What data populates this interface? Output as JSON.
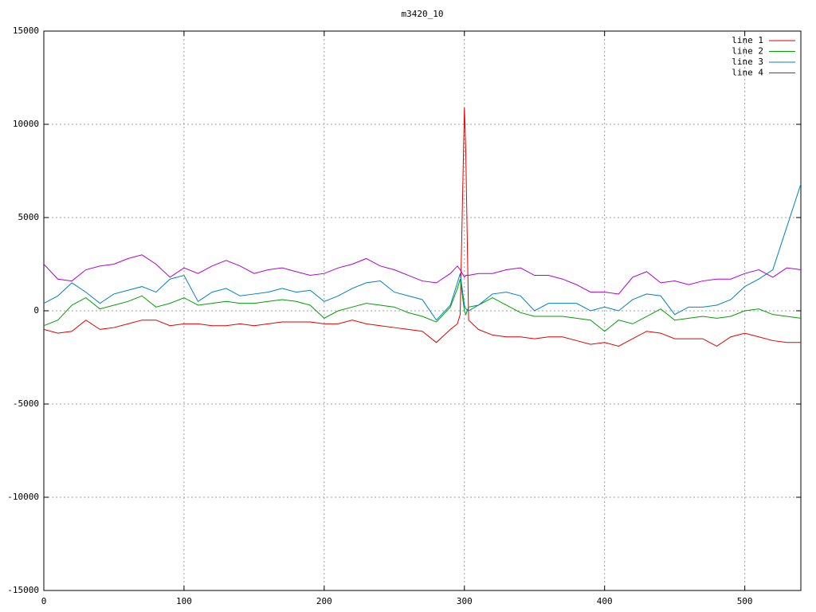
{
  "chart_data": {
    "type": "line",
    "title": "m3420_10",
    "x": [
      0,
      10,
      20,
      30,
      40,
      50,
      60,
      70,
      80,
      90,
      100,
      110,
      120,
      130,
      140,
      150,
      160,
      170,
      180,
      190,
      200,
      210,
      220,
      230,
      240,
      250,
      260,
      270,
      280,
      290,
      295,
      297,
      300,
      301,
      303,
      310,
      320,
      330,
      340,
      350,
      360,
      370,
      380,
      390,
      400,
      410,
      420,
      430,
      440,
      450,
      460,
      470,
      480,
      490,
      500,
      510,
      520,
      530,
      540
    ],
    "series": [
      {
        "name": "line 1",
        "color": "#e00000",
        "values": [
          -1000,
          -1200,
          -1100,
          -500,
          -1000,
          -900,
          -700,
          -500,
          -500,
          -800,
          -700,
          -700,
          -800,
          -800,
          -700,
          -800,
          -700,
          -600,
          -600,
          -600,
          -700,
          -700,
          -500,
          -700,
          -800,
          -900,
          -1000,
          -1100,
          -1700,
          -1000,
          -700,
          -200,
          10900,
          8500,
          -500,
          -1000,
          -1300,
          -1400,
          -1400,
          -1500,
          -1400,
          -1400,
          -1600,
          -1800,
          -1700,
          -1900,
          -1500,
          -1100,
          -1200,
          -1500,
          -1500,
          -1500,
          -1900,
          -1400,
          -1200,
          -1400,
          -1600,
          -1700,
          -1700
        ]
      },
      {
        "name": "line 2",
        "color": "#00a000",
        "values": [
          -800,
          -500,
          300,
          700,
          100,
          300,
          500,
          800,
          200,
          400,
          700,
          300,
          400,
          500,
          400,
          400,
          500,
          600,
          500,
          300,
          -400,
          0,
          200,
          400,
          300,
          200,
          -100,
          -300,
          -600,
          200,
          1200,
          1700,
          0,
          -200,
          200,
          300,
          700,
          300,
          -100,
          -300,
          -300,
          -300,
          -400,
          -500,
          -1100,
          -500,
          -700,
          -300,
          100,
          -500,
          -400,
          -300,
          -400,
          -300,
          0,
          100,
          -200,
          -300,
          -400
        ]
      },
      {
        "name": "line 3",
        "color": "#0080c0",
        "values": [
          400,
          800,
          1500,
          1000,
          400,
          900,
          1100,
          1300,
          1000,
          1700,
          1900,
          500,
          1000,
          1200,
          800,
          900,
          1000,
          1200,
          1000,
          1100,
          500,
          800,
          1200,
          1500,
          1600,
          1000,
          800,
          600,
          -500,
          300,
          1500,
          2000,
          300,
          100,
          0,
          300,
          900,
          1000,
          800,
          0,
          400,
          400,
          400,
          0,
          200,
          0,
          600,
          900,
          800,
          -200,
          200,
          200,
          300,
          600,
          1300,
          1700,
          2200,
          4500,
          6800
        ]
      },
      {
        "name": "line 4",
        "color": "#b000d0",
        "values": [
          2500,
          1700,
          1600,
          2200,
          2400,
          2500,
          2800,
          3000,
          2500,
          1800,
          2300,
          2000,
          2400,
          2700,
          2400,
          2000,
          2200,
          2300,
          2100,
          1900,
          2000,
          2300,
          2500,
          2800,
          2400,
          2200,
          1900,
          1600,
          1500,
          2000,
          2400,
          2200,
          1800,
          1900,
          1900,
          2000,
          2000,
          2200,
          2300,
          1900,
          1900,
          1700,
          1400,
          1000,
          1000,
          900,
          1800,
          2100,
          1500,
          1600,
          1400,
          1600,
          1700,
          1700,
          2000,
          2200,
          1800,
          2300,
          2200
        ]
      }
    ],
    "xlim": [
      0,
      540
    ],
    "xticks": [
      0,
      100,
      200,
      300,
      400,
      500
    ],
    "ylim": [
      -15000,
      15000
    ],
    "yticks": [
      -15000,
      -10000,
      -5000,
      0,
      5000,
      10000,
      15000
    ],
    "grid": true,
    "legend": "top-right"
  }
}
